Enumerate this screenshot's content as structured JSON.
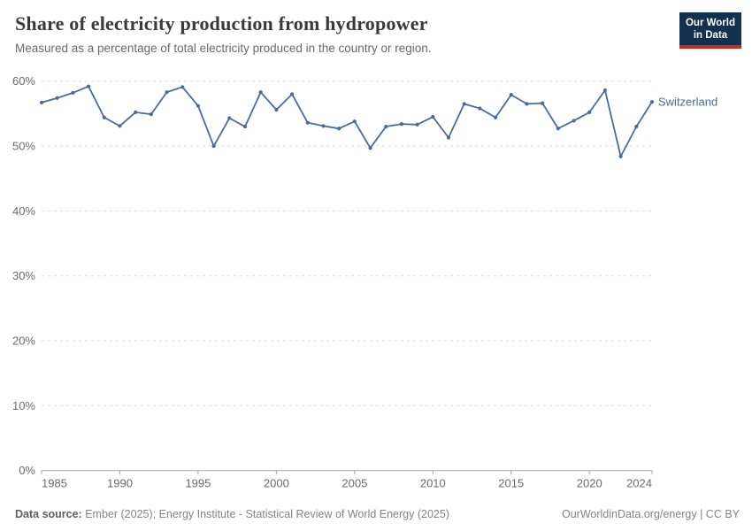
{
  "header": {
    "title": "Share of electricity production from hydropower",
    "subtitle": "Measured as a percentage of total electricity produced in the country or region.",
    "logo_line1": "Our World",
    "logo_line2": "in Data"
  },
  "chart_data": {
    "type": "line",
    "title": "Share of electricity production from hydropower",
    "subtitle": "Measured as a percentage of total electricity produced in the country or region.",
    "x": [
      1985,
      1986,
      1987,
      1988,
      1989,
      1990,
      1991,
      1992,
      1993,
      1994,
      1995,
      1996,
      1997,
      1998,
      1999,
      2000,
      2001,
      2002,
      2003,
      2004,
      2005,
      2006,
      2007,
      2008,
      2009,
      2010,
      2011,
      2012,
      2013,
      2014,
      2015,
      2016,
      2017,
      2018,
      2019,
      2020,
      2021,
      2022,
      2023,
      2024
    ],
    "series": [
      {
        "name": "Switzerland",
        "color": "#4C6B9C",
        "values": [
          56.7,
          57.4,
          58.2,
          59.2,
          54.4,
          53.1,
          55.2,
          54.9,
          58.3,
          59.1,
          56.2,
          50.0,
          54.3,
          53.0,
          58.3,
          55.6,
          58.0,
          53.6,
          53.1,
          52.7,
          53.8,
          49.7,
          53.0,
          53.4,
          53.3,
          54.5,
          51.3,
          56.5,
          55.8,
          54.4,
          57.9,
          56.5,
          56.6,
          52.7,
          53.9,
          55.2,
          58.6,
          48.4,
          53.0,
          56.8
        ]
      }
    ],
    "xlim": [
      1985,
      2024
    ],
    "ylim": [
      0,
      60
    ],
    "x_ticks": [
      1985,
      1990,
      1995,
      2000,
      2005,
      2010,
      2015,
      2020,
      2024
    ],
    "y_ticks": [
      0,
      10,
      20,
      30,
      40,
      50,
      60
    ],
    "y_tick_suffix": "%",
    "grid": "dashed-horizontal",
    "legend_position": "end-of-line",
    "axis_color": "#a5a5a5",
    "gridline_color": "#dddddd",
    "tick_label_color": "#6b6b6b"
  },
  "footer": {
    "source_label": "Data source:",
    "source_text": " Ember (2025); Energy Institute - Statistical Review of World Energy (2025)",
    "credit": "OurWorldinData.org/energy | CC BY"
  }
}
